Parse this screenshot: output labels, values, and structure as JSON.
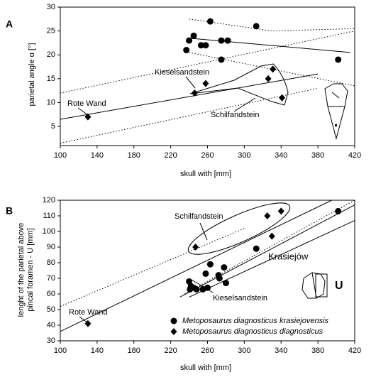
{
  "chart_data": [
    {
      "type": "scatter",
      "panel": "A",
      "x_label": "skull with [mm]",
      "y_label": "parietal angle α [°]",
      "xlim": [
        100,
        420
      ],
      "ylim": [
        1,
        30
      ],
      "xticks": [
        100,
        140,
        180,
        220,
        260,
        300,
        340,
        380,
        420
      ],
      "yticks": [
        5,
        10,
        15,
        20,
        25,
        30
      ],
      "annotations": [
        "Kieselsandstein",
        "Rote Wand",
        "Schilfandstein"
      ],
      "series": [
        {
          "marker": "circle",
          "color": "#000000",
          "x": [
            237,
            240,
            245,
            253,
            258,
            263,
            275,
            282,
            275,
            313,
            402
          ],
          "values": [
            21,
            23,
            24,
            22,
            22,
            27,
            23,
            23,
            19,
            26,
            19
          ]
        },
        {
          "marker": "diamond",
          "color": "#000000",
          "x": [
            130,
            246,
            258,
            326,
            331,
            341
          ],
          "values": [
            7,
            12,
            14,
            15,
            17,
            11
          ]
        }
      ],
      "lines": [
        {
          "style": "solid",
          "x": [
            100,
            380
          ],
          "values": [
            6.5,
            16
          ]
        },
        {
          "style": "solid",
          "x": [
            240,
            415
          ],
          "values": [
            23.5,
            20.5
          ]
        },
        {
          "style": "dotted",
          "x": [
            100,
            420
          ],
          "values": [
            12,
            25
          ]
        },
        {
          "style": "dotted",
          "x": [
            100,
            380
          ],
          "values": [
            1.5,
            13
          ]
        },
        {
          "style": "dotted",
          "x": [
            240,
            330,
            420
          ],
          "values": [
            27.5,
            25,
            25.5
          ]
        },
        {
          "style": "dotted",
          "x": [
            240,
            420
          ],
          "values": [
            20.5,
            13.5
          ]
        }
      ]
    },
    {
      "type": "scatter",
      "panel": "B",
      "x_label": "skull with [mm]",
      "y_label": [
        "lenght of the parietal above",
        "pincal foramen - U [mm]"
      ],
      "xlim": [
        100,
        420
      ],
      "ylim": [
        30,
        120
      ],
      "xticks": [
        100,
        140,
        180,
        220,
        260,
        300,
        340,
        380,
        420
      ],
      "yticks": [
        30,
        40,
        50,
        60,
        70,
        80,
        90,
        100,
        110,
        120
      ],
      "annotations": [
        "Schilfandstein",
        "Krasiejów",
        "Kieselsandstein",
        "Rote Wand",
        "U"
      ],
      "series": [
        {
          "name": "Metoposaurus diagnosticus krasiejovensis",
          "marker": "circle",
          "color": "#000000",
          "x": [
            402,
            313,
            263,
            278,
            258,
            272,
            273,
            280,
            240,
            242,
            245,
            248,
            255,
            260,
            241
          ],
          "values": [
            113,
            89,
            79,
            77,
            73,
            72,
            70,
            67,
            68,
            65,
            64,
            63,
            63,
            64,
            63
          ]
        },
        {
          "name": "Metoposaurus diagnosticus diagnosticus",
          "marker": "diamond",
          "color": "#000000",
          "x": [
            130,
            247,
            325,
            340,
            330
          ],
          "values": [
            41,
            90,
            110,
            113,
            97
          ]
        }
      ],
      "lines": [
        {
          "style": "solid",
          "x": [
            100,
            395
          ],
          "values": [
            36,
            120
          ]
        },
        {
          "style": "solid",
          "x": [
            230,
            420
          ],
          "values": [
            58,
            117
          ]
        },
        {
          "style": "solid",
          "x": [
            240,
            420
          ],
          "values": [
            58,
            107
          ]
        },
        {
          "style": "dotted",
          "x": [
            100,
            300
          ],
          "values": [
            52,
            102
          ]
        },
        {
          "style": "dotted",
          "x": [
            235,
            420
          ],
          "values": [
            60,
            120
          ]
        }
      ]
    }
  ]
}
